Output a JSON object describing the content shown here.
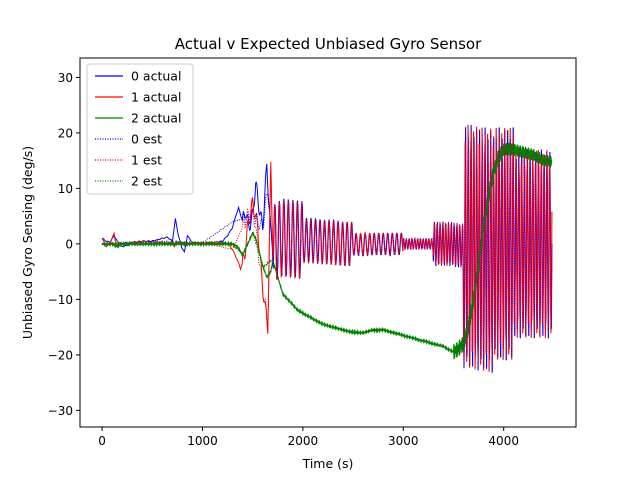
{
  "chart_data": {
    "type": "line",
    "title": "Actual v Expected Unbiased Gyro Sensor",
    "xlabel": "Time (s)",
    "ylabel": "Unbiased Gyro Sensing (deg/s)",
    "xlim": [
      -220,
      4720
    ],
    "ylim": [
      -33,
      33.5
    ],
    "xticks": [
      0,
      1000,
      2000,
      3000,
      4000
    ],
    "xtick_labels": [
      "0",
      "1000",
      "2000",
      "3000",
      "4000"
    ],
    "yticks": [
      -30,
      -20,
      -10,
      0,
      10,
      20,
      30
    ],
    "ytick_labels": [
      "−30",
      "−20",
      "−10",
      "0",
      "10",
      "20",
      "30"
    ],
    "grid": false,
    "legend_position": "upper-left",
    "colors": {
      "blue": "#0000ff",
      "red": "#ff0000",
      "green": "#008000"
    },
    "series": [
      {
        "name": "0 actual",
        "color": "#0000ff",
        "style": "solid",
        "x": [
          0,
          40,
          80,
          120,
          150,
          200,
          300,
          400,
          500,
          600,
          650,
          700,
          730,
          760,
          790,
          820,
          850,
          900,
          1000,
          1100,
          1200,
          1250,
          1300,
          1330,
          1360,
          1400,
          1430,
          1460,
          1500,
          1530,
          1560,
          1600,
          1640,
          1680,
          1700,
          1800,
          1900,
          2000,
          2100,
          2200,
          2300,
          2400,
          2500,
          2600,
          2700,
          2800,
          2900,
          3000,
          3100,
          3200,
          3300,
          3400,
          3500,
          3600,
          3700,
          3800,
          3900,
          4000,
          4100,
          4200,
          4300,
          4400,
          4480
        ],
        "y": [
          1,
          0.5,
          0.3,
          1.5,
          0.5,
          -0.5,
          0,
          0.5,
          0.5,
          1,
          1.2,
          0.5,
          4.5,
          1.5,
          -0.5,
          -1.5,
          1.5,
          0.2,
          0.2,
          0.2,
          0.5,
          1.5,
          3,
          5,
          6.5,
          4,
          6,
          3,
          5,
          11,
          7,
          3,
          14,
          2,
          0,
          5,
          4,
          3,
          3,
          1.5,
          2,
          0,
          0,
          -1,
          0,
          0,
          0,
          0,
          0,
          0,
          -1,
          -2,
          -4,
          -8,
          -12,
          -20,
          -25,
          -22,
          -18,
          -15,
          -12,
          -10,
          -8
        ]
      },
      {
        "name": "1 actual",
        "color": "#ff0000",
        "style": "solid",
        "x": [
          0,
          40,
          80,
          100,
          120,
          140,
          170,
          200,
          300,
          400,
          500,
          600,
          650,
          700,
          720,
          740,
          780,
          800,
          850,
          900,
          1000,
          1100,
          1200,
          1250,
          1300,
          1350,
          1380,
          1420,
          1450,
          1500,
          1550,
          1600,
          1650,
          1680,
          1700,
          1800,
          1900,
          2000,
          2100,
          2200,
          2300,
          2400,
          2500,
          2600,
          2700,
          2800,
          2900,
          3000,
          3100,
          3200,
          3300,
          3400,
          3500,
          3600,
          3700,
          3800,
          3900,
          4000,
          4100,
          4200,
          4300,
          4400,
          4480
        ],
        "y": [
          1,
          -0.5,
          0,
          1,
          2,
          -0.5,
          0.3,
          0,
          0.3,
          0.5,
          0.3,
          0.3,
          0,
          0.3,
          -0.5,
          0.5,
          0,
          0.3,
          0,
          0.2,
          0.2,
          0.3,
          0.3,
          0,
          -1,
          -3,
          -4.5,
          -2,
          3,
          7.5,
          3,
          -8,
          -15,
          14,
          0,
          4,
          3,
          2,
          2,
          1,
          1,
          0,
          0,
          0,
          0,
          0,
          0,
          0,
          0,
          0,
          0,
          -1,
          -3,
          -7,
          -11,
          -20,
          -25,
          -22,
          -18,
          -15,
          -12,
          -10,
          -8
        ]
      },
      {
        "name": "2 actual",
        "color": "#008000",
        "style": "solid",
        "x": [
          0,
          100,
          150,
          200,
          300,
          400,
          500,
          600,
          700,
          800,
          900,
          1000,
          1100,
          1200,
          1300,
          1350,
          1400,
          1450,
          1500,
          1530,
          1560,
          1600,
          1640,
          1680,
          1700,
          1750,
          1800,
          1850,
          1900,
          1950,
          2000,
          2100,
          2200,
          2300,
          2400,
          2500,
          2600,
          2700,
          2800,
          2900,
          3000,
          3100,
          3200,
          3300,
          3400,
          3450,
          3500,
          3550,
          3600,
          3650,
          3700,
          3750,
          3800,
          3850,
          3900,
          3950,
          4000,
          4050,
          4100,
          4200,
          4300,
          4400,
          4480
        ],
        "y": [
          0,
          0,
          -0.5,
          0,
          0,
          0,
          0,
          0,
          0,
          0,
          0,
          0,
          0,
          0,
          0,
          -0.5,
          -2,
          0,
          2,
          1,
          -1,
          -4,
          -6,
          -5,
          -3,
          -6,
          -9,
          -10,
          -11,
          -12,
          -12.5,
          -13.5,
          -14.5,
          -15,
          -15.5,
          -16,
          -16,
          -15.5,
          -15.5,
          -16,
          -16.5,
          -17,
          -17.5,
          -18,
          -18.5,
          -19,
          -19.5,
          -19,
          -18,
          -15,
          -10,
          -4,
          3,
          9,
          13,
          16,
          17,
          17.2,
          17,
          16.5,
          16,
          15,
          14.8
        ]
      },
      {
        "name": "0 est",
        "color": "#0000ff",
        "style": "dotted",
        "x": [
          0,
          500,
          1000,
          1300,
          1500,
          1600,
          1650,
          1680,
          1700,
          1800,
          2000,
          2200,
          2400,
          2600,
          2800,
          3000,
          3200,
          3400,
          3600,
          3800,
          4000,
          4200,
          4400,
          4480
        ],
        "y": [
          0,
          0.5,
          0.2,
          4,
          5,
          3,
          10,
          2,
          0,
          5,
          3,
          1.5,
          0,
          -1,
          0,
          0,
          0,
          -2,
          -8,
          -20,
          -22,
          -15,
          -10,
          -8
        ]
      },
      {
        "name": "1 est",
        "color": "#ff0000",
        "style": "dotted",
        "x": [
          0,
          500,
          1000,
          1300,
          1500,
          1600,
          1650,
          1680,
          1700,
          1800,
          2000,
          2200,
          2400,
          2600,
          2800,
          3000,
          3200,
          3400,
          3600,
          3800,
          4000,
          4200,
          4400,
          4480
        ],
        "y": [
          0,
          0.3,
          0.2,
          -1,
          7,
          -8,
          -14,
          12,
          0,
          4,
          2,
          1,
          0,
          0,
          0,
          0,
          0,
          -1,
          -7,
          -20,
          -22,
          -15,
          -10,
          -8
        ]
      },
      {
        "name": "2 est",
        "color": "#008000",
        "style": "dotted",
        "x": [
          0,
          500,
          1000,
          1300,
          1400,
          1500,
          1600,
          1700,
          1800,
          1900,
          2000,
          2200,
          2400,
          2600,
          2800,
          3000,
          3200,
          3400,
          3500,
          3600,
          3700,
          3800,
          3900,
          4000,
          4100,
          4200,
          4300,
          4400,
          4480
        ],
        "y": [
          0,
          0,
          0,
          0,
          -2,
          2,
          -4,
          -3,
          -9,
          -11,
          -12.5,
          -14.5,
          -15.5,
          -16,
          -15.5,
          -16.5,
          -17.5,
          -18.5,
          -19.5,
          -18,
          -10,
          3,
          13,
          17,
          17,
          16.5,
          16,
          15,
          14.8
        ]
      }
    ]
  }
}
